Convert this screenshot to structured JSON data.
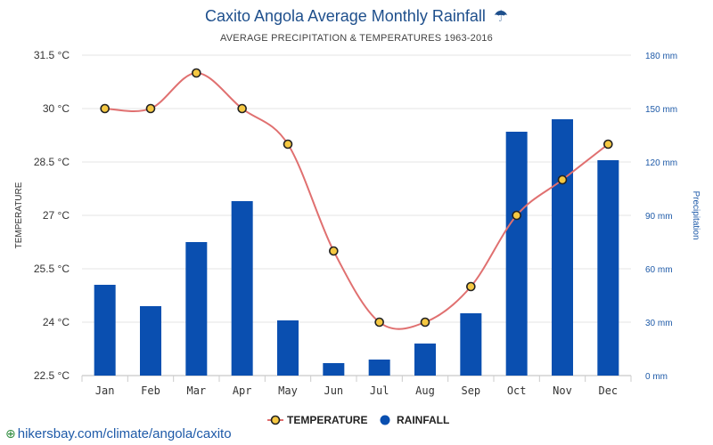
{
  "chart_data": {
    "type": "bar",
    "title": "Caxito Angola Average Monthly Rainfall",
    "title_icon": "umbrella-rain-icon",
    "subtitle": "AVERAGE PRECIPITATION & TEMPERATURES 1963-2016",
    "categories": [
      "Jan",
      "Feb",
      "Mar",
      "Apr",
      "May",
      "Jun",
      "Jul",
      "Aug",
      "Sep",
      "Oct",
      "Nov",
      "Dec"
    ],
    "series": [
      {
        "name": "RAINFALL",
        "type": "bar",
        "axis": "right",
        "color": "#0a4fb0",
        "values": [
          51,
          39,
          75,
          98,
          31,
          7,
          9,
          18,
          35,
          137,
          144,
          121
        ]
      },
      {
        "name": "TEMPERATURE",
        "type": "line",
        "axis": "left",
        "color": "#e07070",
        "marker_fill": "#f5c842",
        "marker_stroke": "#222222",
        "values": [
          30,
          30,
          31,
          30,
          29,
          26,
          24,
          24,
          25,
          27,
          28,
          29
        ]
      }
    ],
    "y_left": {
      "label": "TEMPERATURE",
      "ticks": [
        22.5,
        24,
        25.5,
        27,
        28.5,
        30,
        31.5
      ],
      "tick_labels": [
        "22.5 °C",
        "24 °C",
        "25.5 °C",
        "27 °C",
        "28.5 °C",
        "30 °C",
        "31.5 °C"
      ],
      "ylim": [
        22.5,
        31.5
      ]
    },
    "y_right": {
      "label": "Precipitation",
      "ticks": [
        0,
        30,
        60,
        90,
        120,
        150,
        180
      ],
      "tick_labels": [
        "0 mm",
        "30 mm",
        "60 mm",
        "90 mm",
        "120 mm",
        "150 mm",
        "180 mm"
      ],
      "ylim": [
        0,
        180
      ]
    },
    "grid": true,
    "legend": {
      "placement": "bottom-center",
      "entries": [
        "TEMPERATURE",
        "RAINFALL"
      ]
    }
  },
  "source": {
    "text": "hikersbay.com/climate/angola/caxito",
    "icon": "globe-icon"
  }
}
